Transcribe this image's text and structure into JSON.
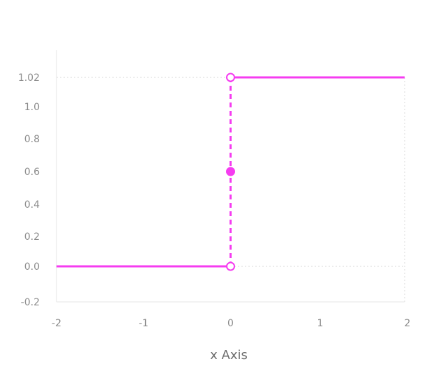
{
  "chart_data": {
    "type": "line",
    "title": "",
    "xlabel": "x Axis",
    "ylabel": "",
    "xlim": [
      -2,
      2
    ],
    "ylim": [
      -0.2,
      1.02
    ],
    "x_ticks": [
      -2,
      -1,
      0,
      1,
      2
    ],
    "x_tick_labels": [
      "-2",
      "-1",
      "0",
      "1",
      "2"
    ],
    "y_ticks": [
      -0.2,
      0.0,
      0.2,
      0.4,
      0.6,
      0.8,
      1.0,
      1.02
    ],
    "y_tick_labels": [
      "-0.2",
      "0.0",
      "0.2",
      "0.4",
      "0.6",
      "0.8",
      "1.0",
      "1.02"
    ],
    "grid": {
      "horizontal_dotted_at": [
        0.0,
        1.02
      ],
      "vertical_dotted_at": [
        2
      ]
    },
    "color": "#f53cf0",
    "segments": [
      {
        "x": [
          -2,
          0
        ],
        "y": [
          0.0,
          0.0
        ],
        "style": "solid"
      },
      {
        "x": [
          0,
          0
        ],
        "y": [
          0.0,
          1.02
        ],
        "style": "dashed"
      },
      {
        "x": [
          0,
          2
        ],
        "y": [
          1.02,
          1.02
        ],
        "style": "solid"
      }
    ],
    "points": [
      {
        "x": 0,
        "y": 1.02,
        "filled": false
      },
      {
        "x": 0,
        "y": 0.6,
        "filled": true
      },
      {
        "x": 0,
        "y": 0.0,
        "filled": false
      }
    ]
  }
}
